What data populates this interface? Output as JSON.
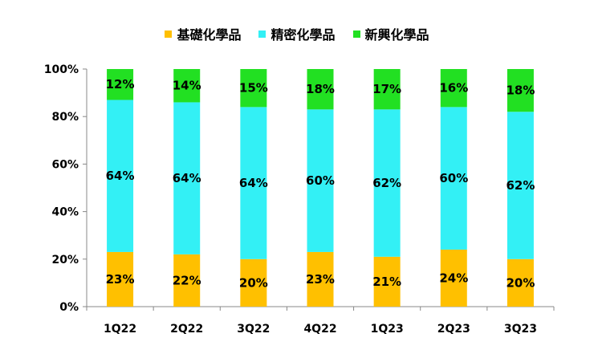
{
  "chart_data": {
    "type": "bar",
    "stacked": true,
    "categories": [
      "1Q22",
      "2Q22",
      "3Q22",
      "4Q22",
      "1Q23",
      "2Q23",
      "3Q23"
    ],
    "series": [
      {
        "name": "基礎化學品",
        "color": "#FFC000",
        "values": [
          23,
          22,
          20,
          23,
          21,
          24,
          20
        ],
        "labels": [
          "23%",
          "22%",
          "20%",
          "23%",
          "21%",
          "24%",
          "20%"
        ]
      },
      {
        "name": "精密化學品",
        "color": "#33F0F5",
        "values": [
          64,
          64,
          64,
          60,
          62,
          60,
          62
        ],
        "labels": [
          "64%",
          "64%",
          "64%",
          "60%",
          "62%",
          "60%",
          "62%"
        ]
      },
      {
        "name": "新興化學品",
        "color": "#22E022",
        "values": [
          12,
          14,
          15,
          18,
          17,
          16,
          18
        ],
        "labels": [
          "12%",
          "14%",
          "15%",
          "18%",
          "17%",
          "16%",
          "18%"
        ]
      }
    ],
    "ylim": [
      0,
      100
    ],
    "yticks": [
      "0%",
      "20%",
      "40%",
      "60%",
      "80%",
      "100%"
    ],
    "grid": false,
    "legend_position": "top"
  }
}
